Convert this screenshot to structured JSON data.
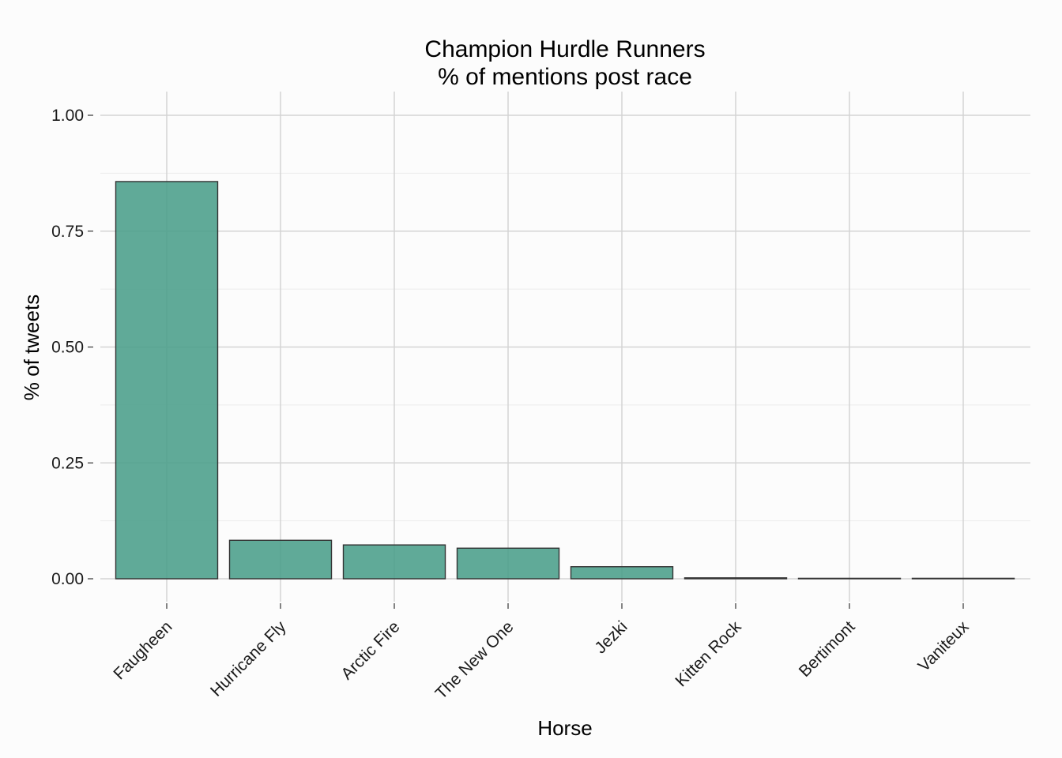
{
  "chart_data": {
    "type": "bar",
    "title": "Champion Hurdle Runners",
    "subtitle": "% of mentions post race",
    "xlabel": "Horse",
    "ylabel": "% of tweets",
    "categories": [
      "Faugheen",
      "Hurricane Fly",
      "Arctic Fire",
      "The New One",
      "Jezki",
      "Kitten Rock",
      "Bertimont",
      "Vaniteux"
    ],
    "values": [
      0.857,
      0.083,
      0.073,
      0.066,
      0.026,
      0.002,
      0.001,
      0.001
    ],
    "ylim": [
      -0.05,
      1.05
    ],
    "yticks": [
      0.0,
      0.25,
      0.5,
      0.75,
      1.0
    ],
    "ytick_labels": [
      "0.00",
      "0.25",
      "0.50",
      "0.75",
      "1.00"
    ],
    "grid": true,
    "legend": "none",
    "colors": {
      "bar_fill": "#4a9e8a",
      "bar_stroke": "#333333",
      "grid_major": "#d4d4d4",
      "grid_minor": "#ececec",
      "background": "#fcfcfc"
    }
  }
}
